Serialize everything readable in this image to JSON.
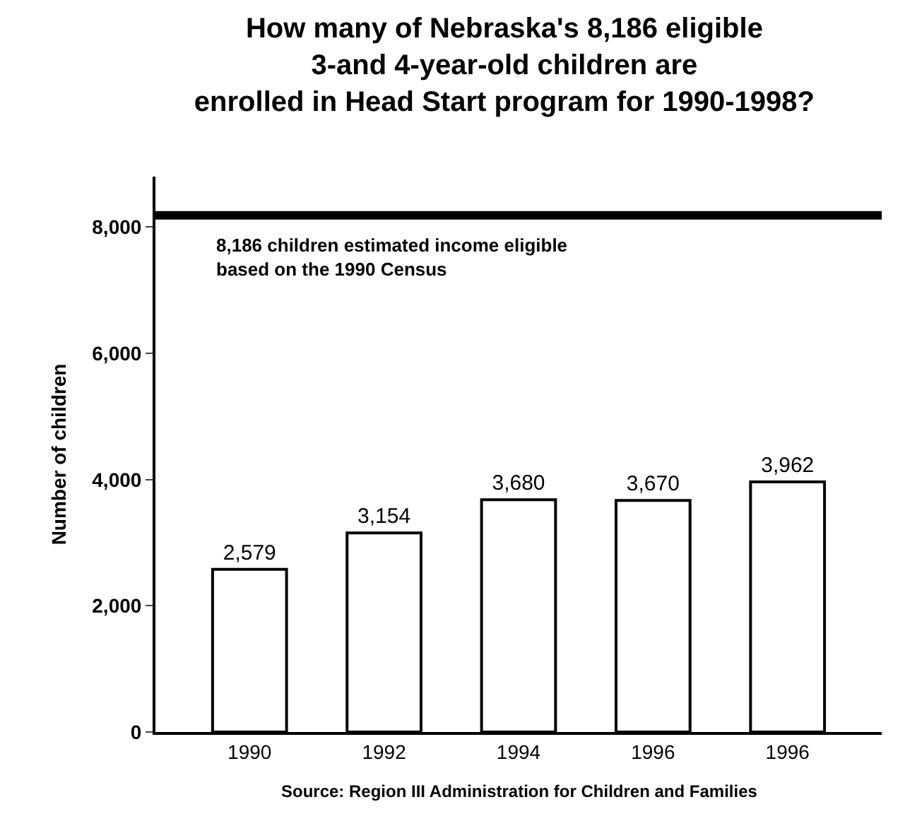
{
  "chart_data": {
    "type": "bar",
    "title": "How many of Nebraska's 8,186 eligible\n3-and 4-year-old children are\nenrolled in Head Start program for 1990-1998?",
    "categories": [
      "1990",
      "1992",
      "1994",
      "1996",
      "1996"
    ],
    "values": [
      2579,
      3154,
      3680,
      3670,
      3962
    ],
    "value_labels": [
      "2,579",
      "3,154",
      "3,680",
      "3,670",
      "3,962"
    ],
    "color": "#ffffff",
    "ylabel": "Number of children",
    "ylim": [
      0,
      8800
    ],
    "yticks": [
      {
        "value": 0,
        "label": "0"
      },
      {
        "value": 2000,
        "label": "2,000"
      },
      {
        "value": 4000,
        "label": "4,000"
      },
      {
        "value": 6000,
        "label": "6,000"
      },
      {
        "value": 8000,
        "label": "8,000"
      }
    ],
    "ref_lines": [
      {
        "axis": "y",
        "value": 8186,
        "label": "8,186 children estimated income eligible\nbased on the 1990 Census",
        "color": "#000000"
      }
    ],
    "annotations": [
      "Source: Region III Administration for Children and Families"
    ]
  }
}
